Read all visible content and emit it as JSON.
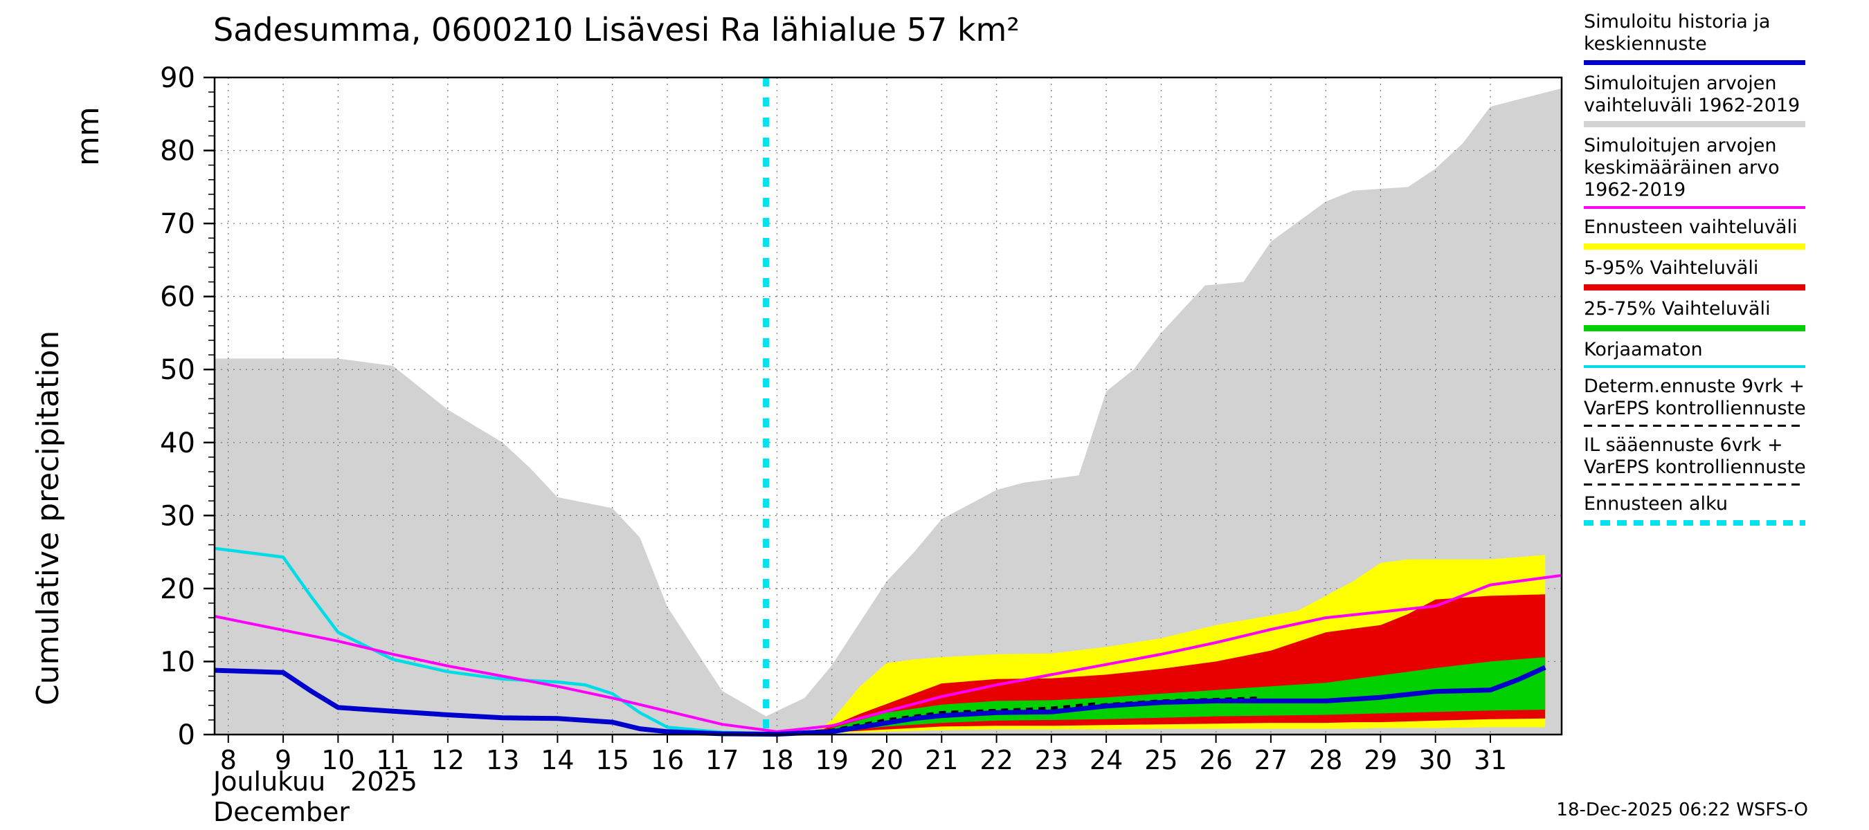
{
  "chart_data": {
    "type": "area",
    "title": "Sadesumma, 0600210 Lisävesi Ra lähialue 57 km²",
    "ylabel": "Cumulative precipitation",
    "ylabel_unit": "mm",
    "xlabel_fi": "Joulukuu",
    "xlabel_year": "2025",
    "xlabel_en": "December",
    "xlim": [
      7.75,
      32.3
    ],
    "ylim": [
      0,
      90
    ],
    "x_ticks": [
      8,
      9,
      10,
      11,
      12,
      13,
      14,
      15,
      16,
      17,
      18,
      19,
      20,
      21,
      22,
      23,
      24,
      25,
      26,
      27,
      28,
      29,
      30,
      31
    ],
    "y_ticks": [
      0,
      10,
      20,
      30,
      40,
      50,
      60,
      70,
      80,
      90
    ],
    "y_minor_step": 2,
    "grid": true,
    "forecast_start_x": 17.8,
    "forecast_start_color": "#00e2ee",
    "bands": [
      {
        "name": "simulated-range-1962-2019",
        "color": "#d2d2d2",
        "under_grid": true,
        "x": [
          7.75,
          9,
          10,
          11,
          12,
          13,
          13.5,
          14,
          15,
          15.5,
          16,
          17,
          17.8,
          18.5,
          19,
          20,
          20.5,
          21,
          22,
          22.5,
          23.5,
          24,
          24.5,
          25,
          25.8,
          26.5,
          27,
          28,
          28.5,
          29.5,
          30,
          30.5,
          31,
          32.3
        ],
        "upper": [
          51.5,
          51.5,
          51.5,
          50.5,
          44.5,
          40,
          36.5,
          32.5,
          31,
          27,
          17.5,
          6,
          2.5,
          5,
          9.5,
          21,
          25,
          29.5,
          33.5,
          34.5,
          35.5,
          47,
          50,
          55,
          61.5,
          62,
          67.5,
          73,
          74.5,
          75,
          77.5,
          81,
          86,
          88.5
        ],
        "lower": 0
      },
      {
        "name": "forecast-range",
        "color": "#ffff00",
        "under_grid": false,
        "x": [
          18.7,
          19,
          19.5,
          20,
          20.5,
          21,
          22,
          23,
          24,
          25,
          26,
          27,
          27.5,
          28,
          28.5,
          29,
          29.5,
          30,
          31,
          32
        ],
        "upper": [
          0.4,
          2,
          6.5,
          9.8,
          10.3,
          10.6,
          11,
          11.1,
          12,
          13.2,
          15,
          16.3,
          17,
          19,
          21,
          23.5,
          24,
          24,
          24,
          24.6
        ],
        "lower": [
          0.1,
          0.2,
          0.3,
          0.4,
          0.5,
          0.6,
          0.7,
          0.7,
          0.7,
          0.8,
          0.8,
          0.8,
          0.8,
          0.8,
          0.8,
          0.9,
          0.9,
          0.9,
          1,
          1
        ]
      },
      {
        "name": "range-5-95",
        "color": "#e60000",
        "under_grid": false,
        "x": [
          18.7,
          19,
          19.5,
          20,
          20.5,
          21,
          22,
          23,
          24,
          25,
          26,
          27,
          28,
          28.5,
          29,
          29.5,
          30,
          31,
          32
        ],
        "upper": [
          0.3,
          1.2,
          2.8,
          4.2,
          5.6,
          7,
          7.6,
          7.7,
          8.2,
          9,
          10,
          11.5,
          14,
          14.5,
          15,
          16.5,
          18.5,
          19,
          19.2
        ],
        "lower": [
          0.1,
          0.3,
          0.5,
          0.7,
          0.9,
          1.1,
          1.2,
          1.2,
          1.3,
          1.4,
          1.5,
          1.6,
          1.6,
          1.7,
          1.7,
          1.8,
          1.9,
          2.1,
          2.2
        ]
      },
      {
        "name": "range-25-75",
        "color": "#00d000",
        "under_grid": false,
        "x": [
          18.7,
          19,
          20,
          21,
          22,
          23,
          24,
          25,
          26,
          27,
          28,
          29,
          30,
          31,
          32
        ],
        "upper": [
          0.2,
          0.9,
          3,
          4.1,
          4.6,
          4.7,
          5.1,
          5.6,
          6.1,
          6.6,
          7.1,
          8.1,
          9.1,
          10,
          10.6
        ],
        "lower": [
          0.1,
          0.4,
          1.1,
          1.6,
          1.9,
          2,
          2.1,
          2.3,
          2.5,
          2.6,
          2.7,
          2.9,
          3.1,
          3.3,
          3.4
        ]
      }
    ],
    "lines": [
      {
        "name": "uncorrected",
        "color": "#00dce6",
        "width": 4.5,
        "x": [
          7.75,
          9,
          9.5,
          10,
          11,
          12,
          13,
          14,
          14.5,
          15,
          15.5,
          16,
          17,
          18
        ],
        "y": [
          25.5,
          24.3,
          19,
          14,
          10.3,
          8.6,
          7.6,
          7.2,
          6.8,
          5.6,
          3,
          1,
          0.3,
          0.1
        ]
      },
      {
        "name": "simulated-mean-1962-2019",
        "color": "#ff00ff",
        "width": 4,
        "x": [
          7.75,
          9,
          10,
          11,
          12,
          13,
          14,
          15,
          16,
          17,
          18,
          19,
          20,
          21,
          22,
          23,
          24,
          25,
          26,
          27,
          28,
          29,
          30,
          31,
          32.3
        ],
        "y": [
          16.2,
          14.3,
          12.8,
          11,
          9.4,
          8,
          6.6,
          5,
          3.2,
          1.4,
          0.4,
          1.2,
          3.2,
          5.2,
          6.8,
          8.2,
          9.6,
          11,
          12.6,
          14.4,
          16,
          16.8,
          17.6,
          20.5,
          21.8
        ]
      },
      {
        "name": "determ-forecast-9d",
        "color": "#000000",
        "width": 2.5,
        "dash": [
          10,
          8
        ],
        "x": [
          17.8,
          18,
          19,
          20,
          21,
          22,
          23,
          24,
          25,
          26,
          26.8
        ],
        "y": [
          0.05,
          0.1,
          0.5,
          1.9,
          3,
          3.3,
          3.5,
          4.2,
          4.7,
          4.9,
          5.1
        ]
      },
      {
        "name": "il-forecast-6d",
        "color": "#000000",
        "width": 2.5,
        "dash": [
          10,
          8
        ],
        "x": [
          17.8,
          18,
          19,
          20,
          21,
          22,
          23,
          23.8
        ],
        "y": [
          0.05,
          0.15,
          0.7,
          2.1,
          3.1,
          3.4,
          3.7,
          4.3
        ]
      },
      {
        "name": "simulated-history-and-central-forecast",
        "color": "#0000cd",
        "width": 7,
        "x": [
          7.75,
          9,
          9.5,
          10,
          11,
          12,
          13,
          14,
          15,
          15.5,
          16,
          17,
          18,
          19,
          20,
          20.5,
          21,
          22,
          23,
          24,
          25,
          26,
          27,
          28,
          29,
          30,
          31,
          31.5,
          32
        ],
        "y": [
          8.8,
          8.5,
          6,
          3.7,
          3.2,
          2.7,
          2.3,
          2.2,
          1.7,
          0.8,
          0.4,
          0.1,
          0.05,
          0.4,
          1.6,
          2.2,
          2.6,
          3,
          3.1,
          3.9,
          4.4,
          4.6,
          4.6,
          4.6,
          5.1,
          5.9,
          6.1,
          7.5,
          9.2
        ]
      }
    ]
  },
  "legend": {
    "items": [
      {
        "label": "Simuloitu historia ja keskiennuste",
        "color": "#0000cd",
        "thickness": 7,
        "sample_name": "legend-sample-simulated-history-line"
      },
      {
        "label": "Simuloitujen arvojen vaihteluväli 1962-2019",
        "color": "#d2d2d2",
        "thickness": 9,
        "sample_name": "legend-sample-simulated-range-band"
      },
      {
        "label": "Simuloitujen arvojen keskimääräinen arvo 1962-2019",
        "color": "#ff00ff",
        "thickness": 4,
        "sample_name": "legend-sample-simulated-mean-line"
      },
      {
        "label": "Ennusteen vaihteluväli",
        "color": "#ffff00",
        "thickness": 9,
        "sample_name": "legend-sample-forecast-range-band"
      },
      {
        "label": "5-95% Vaihteluväli",
        "color": "#e60000",
        "thickness": 9,
        "sample_name": "legend-sample-5-95-band"
      },
      {
        "label": "25-75% Vaihteluväli",
        "color": "#00d000",
        "thickness": 9,
        "sample_name": "legend-sample-25-75-band"
      },
      {
        "label": "Korjaamaton",
        "color": "#00dce6",
        "thickness": 4,
        "sample_name": "legend-sample-uncorrected-line"
      },
      {
        "label": "Determ.ennuste 9vrk + VarEPS kontrolliennuste",
        "color": "#000000",
        "thickness": 3,
        "dash": [
          12,
          8
        ],
        "sample_name": "legend-sample-determ-forecast-line"
      },
      {
        "label": "IL sääennuste 6vrk  + VarEPS kontrolliennuste",
        "color": "#000000",
        "thickness": 3,
        "dash": [
          12,
          8
        ],
        "sample_name": "legend-sample-il-forecast-line"
      },
      {
        "label": "Ennusteen alku",
        "color": "#00e2ee",
        "thickness": 8,
        "dash": [
          14,
          10
        ],
        "sample_name": "legend-sample-forecast-start-line"
      }
    ]
  },
  "footer": {
    "timestamp": "18-Dec-2025 06:22 WSFS-O"
  }
}
